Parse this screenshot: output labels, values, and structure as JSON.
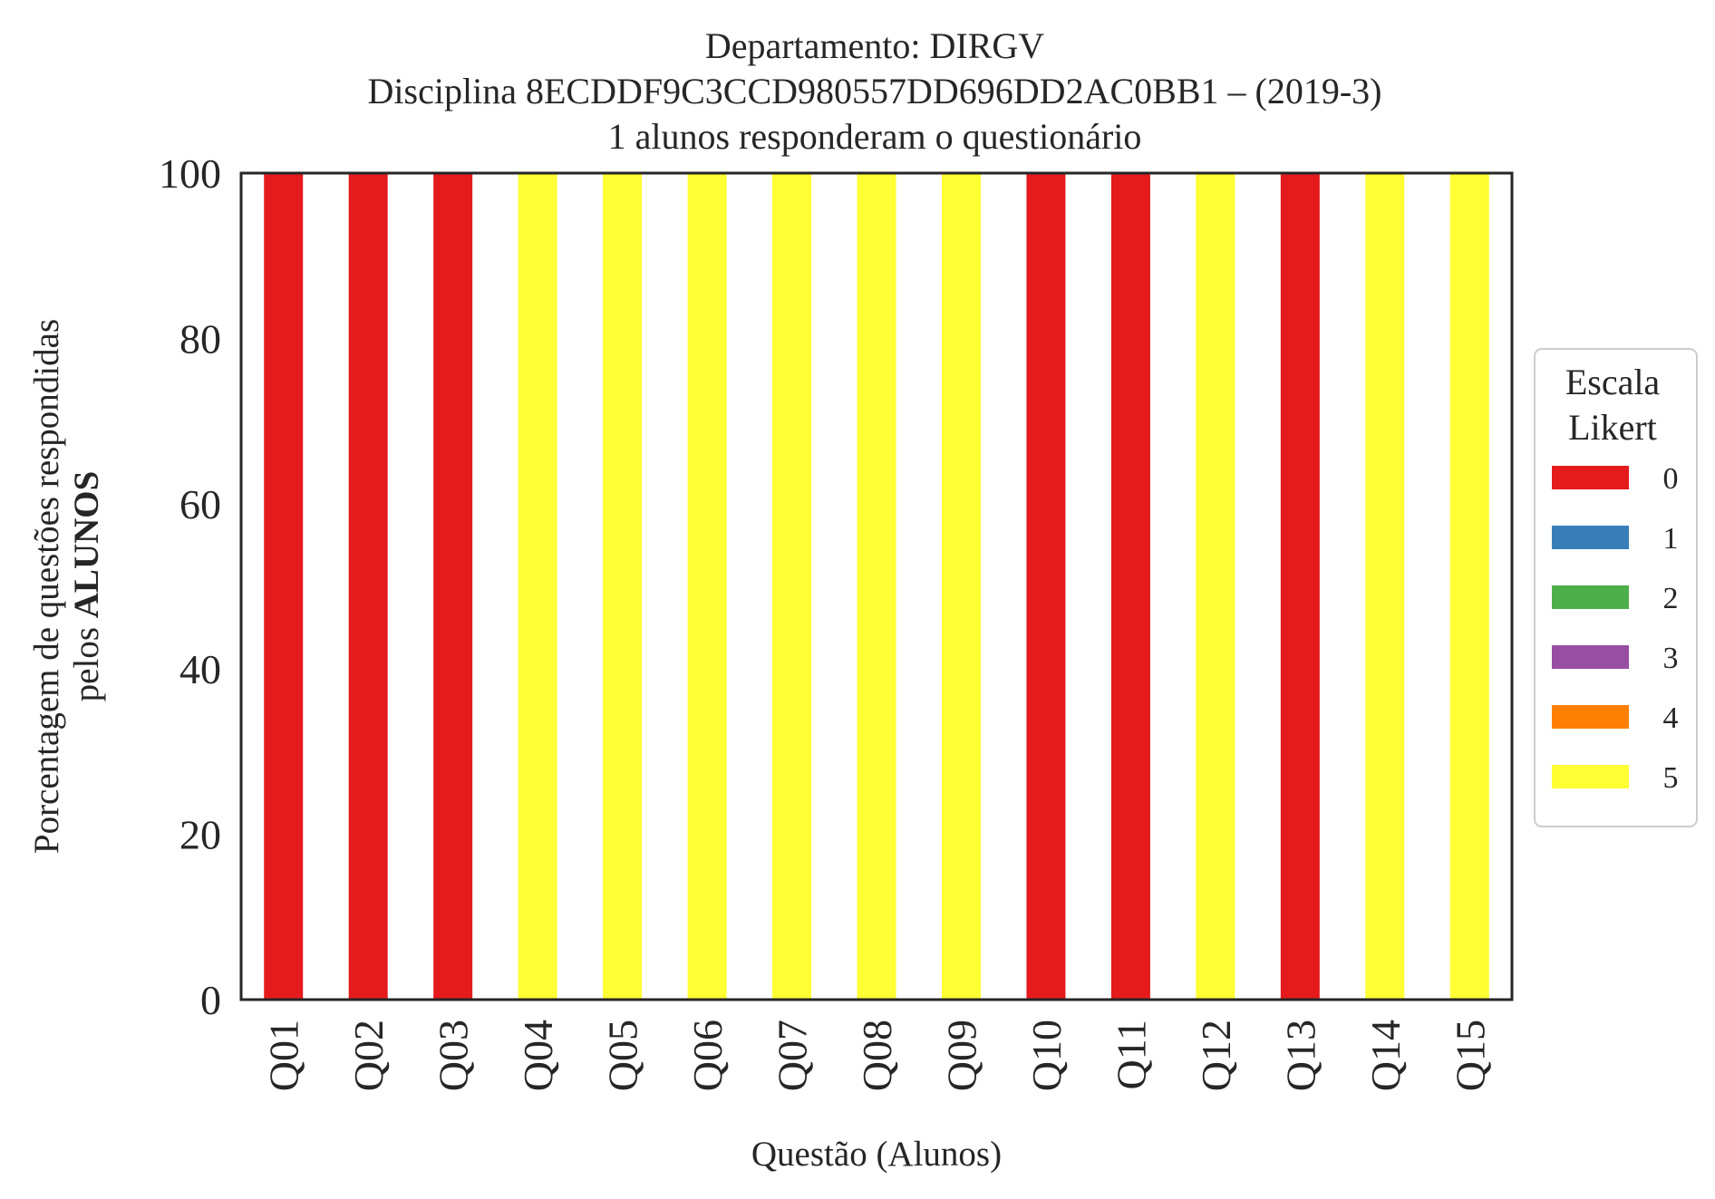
{
  "chart_data": {
    "type": "bar",
    "stacked": true,
    "title_lines": [
      "Departamento: DIRGV",
      "Disciplina 8ECDDF9C3CCD980557DD696DD2AC0BB1 – (2019-3)",
      "1 alunos responderam o questionário"
    ],
    "xlabel": "Questão (Alunos)",
    "ylabel_line1": "Porcentagem de questões respondidas",
    "ylabel_line2_prefix": "pelos ",
    "ylabel_line2_bold": "ALUNOS",
    "ylim": [
      0,
      100
    ],
    "yticks": [
      0,
      20,
      40,
      60,
      80,
      100
    ],
    "categories": [
      "Q01",
      "Q02",
      "Q03",
      "Q04",
      "Q05",
      "Q06",
      "Q07",
      "Q08",
      "Q09",
      "Q10",
      "Q11",
      "Q12",
      "Q13",
      "Q14",
      "Q15"
    ],
    "series": [
      {
        "name": "0",
        "color": "#e41a1c",
        "values": [
          100,
          100,
          100,
          0,
          0,
          0,
          0,
          0,
          0,
          100,
          100,
          0,
          100,
          0,
          0
        ]
      },
      {
        "name": "1",
        "color": "#377eb8",
        "values": [
          0,
          0,
          0,
          0,
          0,
          0,
          0,
          0,
          0,
          0,
          0,
          0,
          0,
          0,
          0
        ]
      },
      {
        "name": "2",
        "color": "#4daf4a",
        "values": [
          0,
          0,
          0,
          0,
          0,
          0,
          0,
          0,
          0,
          0,
          0,
          0,
          0,
          0,
          0
        ]
      },
      {
        "name": "3",
        "color": "#984ea3",
        "values": [
          0,
          0,
          0,
          0,
          0,
          0,
          0,
          0,
          0,
          0,
          0,
          0,
          0,
          0,
          0
        ]
      },
      {
        "name": "4",
        "color": "#ff7f00",
        "values": [
          0,
          0,
          0,
          0,
          0,
          0,
          0,
          0,
          0,
          0,
          0,
          0,
          0,
          0,
          0
        ]
      },
      {
        "name": "5",
        "color": "#ffff33",
        "values": [
          0,
          0,
          0,
          100,
          100,
          100,
          100,
          100,
          100,
          0,
          0,
          100,
          0,
          100,
          100
        ]
      }
    ],
    "legend": {
      "title_lines": [
        "Escala",
        "Likert"
      ],
      "placement": "right"
    },
    "grid": false
  }
}
